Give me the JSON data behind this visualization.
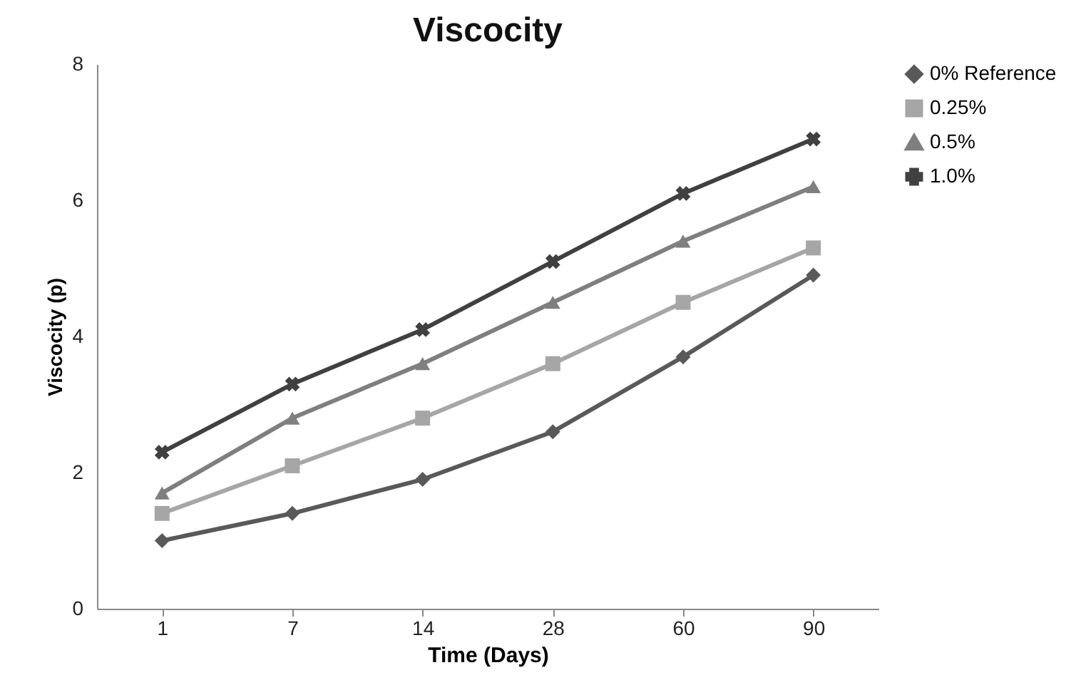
{
  "chart_data": {
    "type": "line",
    "title": "Viscocity",
    "xlabel": "Time (Days)",
    "ylabel": "Viscocity  (p)",
    "categories": [
      "1",
      "7",
      "14",
      "28",
      "60",
      "90"
    ],
    "ylim": [
      0,
      8
    ],
    "yticks": [
      0,
      2,
      4,
      6,
      8
    ],
    "grid": false,
    "legend": "right",
    "series": [
      {
        "name": "0% Reference",
        "color": "#595959",
        "marker": "diamond",
        "values": [
          1.0,
          1.4,
          1.9,
          2.6,
          3.7,
          4.9
        ]
      },
      {
        "name": "0.25%",
        "color": "#a6a6a6",
        "marker": "square",
        "values": [
          1.4,
          2.1,
          2.8,
          3.6,
          4.5,
          5.3
        ]
      },
      {
        "name": "0.5%",
        "color": "#7f7f7f",
        "marker": "triangle",
        "values": [
          1.7,
          2.8,
          3.6,
          4.5,
          5.4,
          6.2
        ]
      },
      {
        "name": "1.0%",
        "color": "#404040",
        "marker": "cross",
        "values": [
          2.3,
          3.3,
          4.1,
          5.1,
          6.1,
          6.9
        ]
      }
    ]
  }
}
